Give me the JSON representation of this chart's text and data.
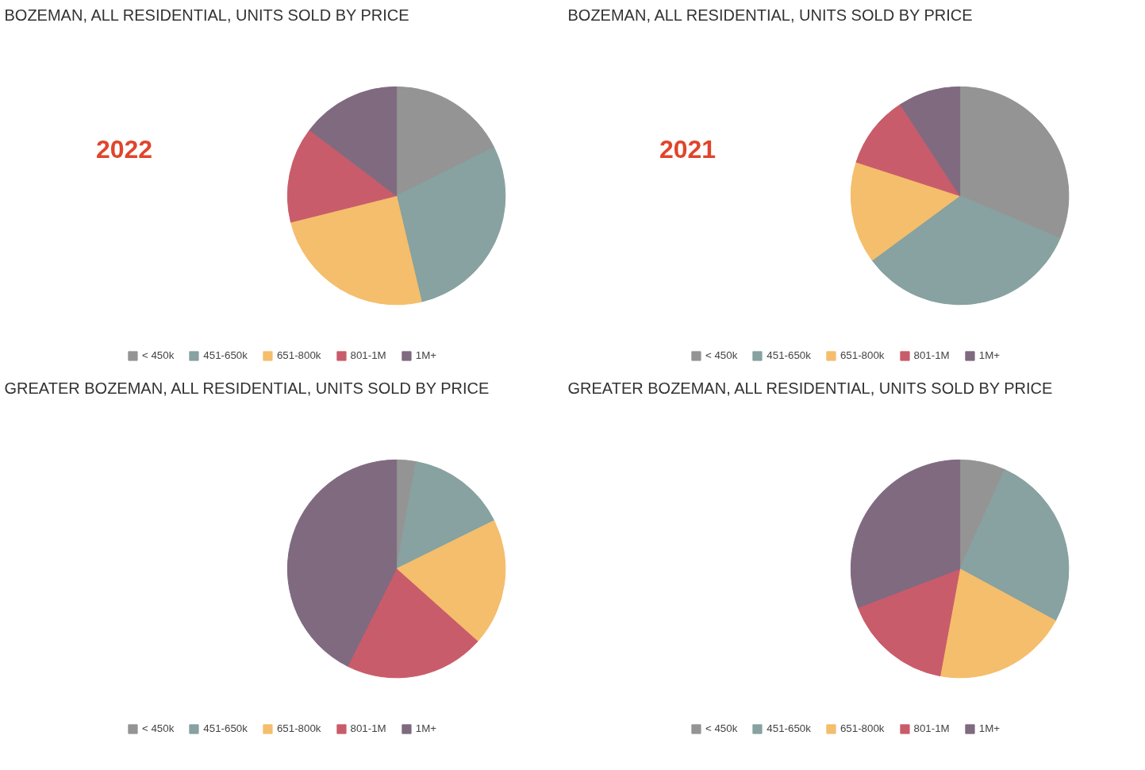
{
  "chart_data": [
    {
      "type": "pie",
      "title": "BOZEMAN, ALL RESIDENTIAL, UNITS SOLD BY PRICE",
      "annotations": [
        "2022"
      ],
      "legend": "bottom",
      "categories": [
        "< 450k",
        "451-650k",
        "651-800k",
        "801-1M",
        "1M+"
      ],
      "values": [
        17.7,
        28.6,
        24.8,
        14.2,
        14.7
      ],
      "colors": [
        "#949494",
        "#87a2a0",
        "#f4be6c",
        "#c95c6a",
        "#7f6a80"
      ]
    },
    {
      "type": "pie",
      "title": "BOZEMAN, ALL RESIDENTIAL, UNITS SOLD BY PRICE",
      "annotations": [
        "2021"
      ],
      "legend": "bottom",
      "categories": [
        "< 450k",
        "451-650k",
        "651-800k",
        "801-1M",
        "1M+"
      ],
      "values": [
        31.4,
        33.5,
        15.1,
        10.8,
        9.2
      ],
      "colors": [
        "#949494",
        "#87a2a0",
        "#f4be6c",
        "#c95c6a",
        "#7f6a80"
      ]
    },
    {
      "type": "pie",
      "title": "GREATER BOZEMAN, ALL RESIDENTIAL, UNITS SOLD BY PRICE",
      "legend": "bottom",
      "categories": [
        "< 450k",
        "451-650k",
        "651-800k",
        "801-1M",
        "1M+"
      ],
      "values": [
        2.9,
        14.8,
        18.9,
        20.8,
        42.6
      ],
      "colors": [
        "#949494",
        "#87a2a0",
        "#f4be6c",
        "#c95c6a",
        "#7f6a80"
      ]
    },
    {
      "type": "pie",
      "title": "GREATER BOZEMAN, ALL RESIDENTIAL, UNITS SOLD BY PRICE",
      "legend": "bottom",
      "categories": [
        "< 450k",
        "451-650k",
        "651-800k",
        "801-1M",
        "1M+"
      ],
      "values": [
        6.8,
        26.1,
        20.0,
        16.3,
        30.8
      ],
      "colors": [
        "#949494",
        "#87a2a0",
        "#f4be6c",
        "#c95c6a",
        "#7f6a80"
      ]
    }
  ]
}
